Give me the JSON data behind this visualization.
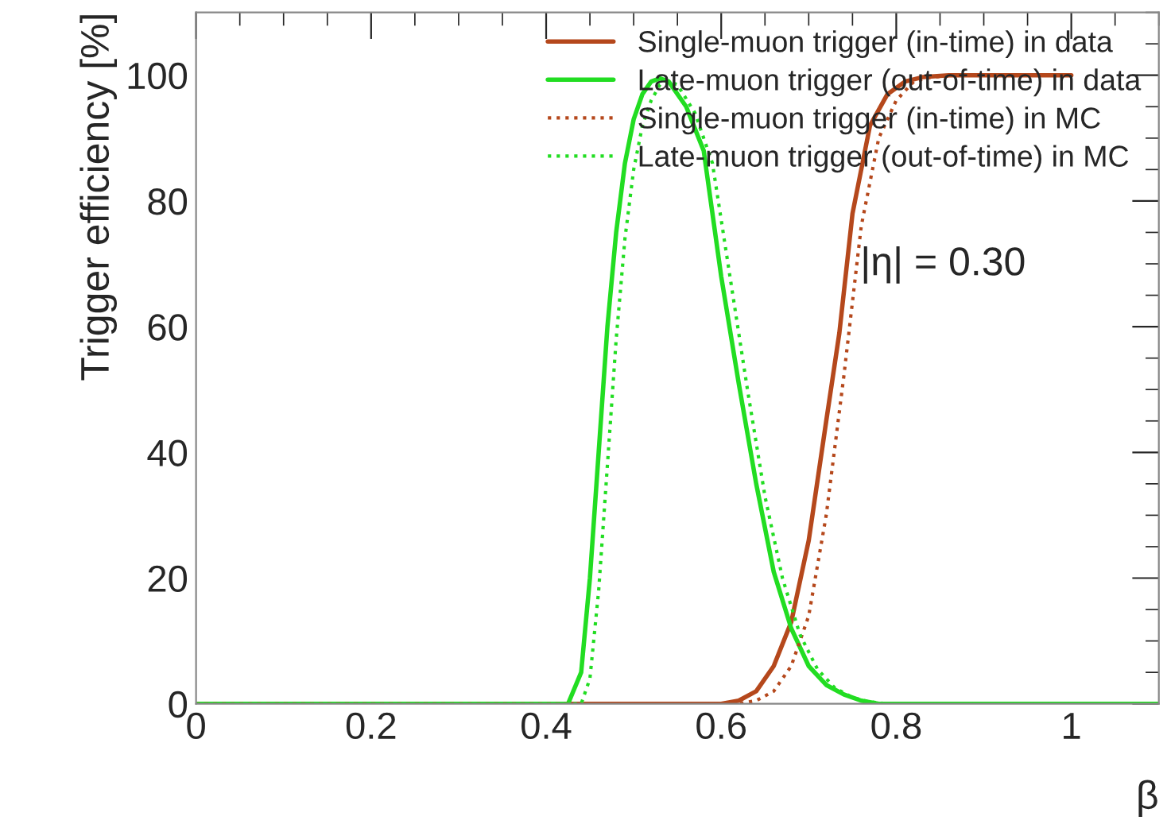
{
  "chart_data": {
    "type": "line",
    "xlabel": "β",
    "ylabel": "Trigger efficiency [%]",
    "xlim": [
      0,
      1.1
    ],
    "ylim": [
      0,
      110
    ],
    "xticks": [
      0,
      0.2,
      0.4,
      0.6,
      0.8,
      1
    ],
    "yticks": [
      0,
      20,
      40,
      60,
      80,
      100
    ],
    "grid": false,
    "legend": "top right",
    "marker": "none",
    "annotations": [
      "|η| = 0.30"
    ],
    "series": [
      {
        "name": "Single-muon trigger (in-time) in data",
        "color": "#b5481c",
        "line_style": "solid",
        "x": [
          0,
          0.6,
          0.62,
          0.64,
          0.66,
          0.68,
          0.7,
          0.72,
          0.735,
          0.75,
          0.77,
          0.79,
          0.81,
          0.83,
          0.86,
          1.0
        ],
        "values": [
          0,
          0,
          0.5,
          2,
          6,
          13,
          26,
          45,
          59,
          78,
          92,
          97,
          99,
          99.7,
          100,
          100
        ]
      },
      {
        "name": "Late-muon trigger (out-of-time) in data",
        "color": "#22dd22",
        "line_style": "solid",
        "x": [
          0,
          0.425,
          0.44,
          0.45,
          0.46,
          0.47,
          0.48,
          0.49,
          0.5,
          0.51,
          0.52,
          0.53,
          0.54,
          0.56,
          0.58,
          0.6,
          0.62,
          0.64,
          0.66,
          0.68,
          0.7,
          0.72,
          0.74,
          0.76,
          0.78,
          1.1
        ],
        "values": [
          0,
          0,
          5,
          20,
          40,
          60,
          75,
          86,
          93,
          97,
          99,
          99.5,
          99,
          95,
          88,
          68,
          51,
          35,
          21,
          12,
          6,
          3,
          1.5,
          0.5,
          0,
          0
        ]
      },
      {
        "name": "Single-muon trigger (in-time) in MC",
        "color": "#b5481c",
        "line_style": "dotted",
        "x": [
          0,
          0.62,
          0.64,
          0.66,
          0.68,
          0.7,
          0.72,
          0.74,
          0.75,
          0.76,
          0.78,
          0.8,
          0.82,
          0.84,
          0.87,
          1.0
        ],
        "values": [
          0,
          0,
          0.5,
          2,
          6,
          14,
          30,
          52,
          64,
          76,
          90,
          96,
          99,
          99.7,
          100,
          100
        ]
      },
      {
        "name": "Late-muon trigger (out-of-time) in MC",
        "color": "#22dd22",
        "line_style": "dotted",
        "x": [
          0,
          0.44,
          0.45,
          0.46,
          0.47,
          0.48,
          0.49,
          0.5,
          0.51,
          0.52,
          0.53,
          0.54,
          0.55,
          0.57,
          0.59,
          0.61,
          0.63,
          0.65,
          0.67,
          0.69,
          0.71,
          0.73,
          0.75,
          0.77,
          0.79,
          1.1
        ],
        "values": [
          0,
          0,
          4,
          18,
          38,
          58,
          74,
          85,
          92,
          96,
          98.5,
          99,
          98.5,
          94,
          86,
          68,
          50,
          33,
          20,
          11,
          5.5,
          2.5,
          1,
          0.3,
          0,
          0
        ]
      }
    ]
  }
}
